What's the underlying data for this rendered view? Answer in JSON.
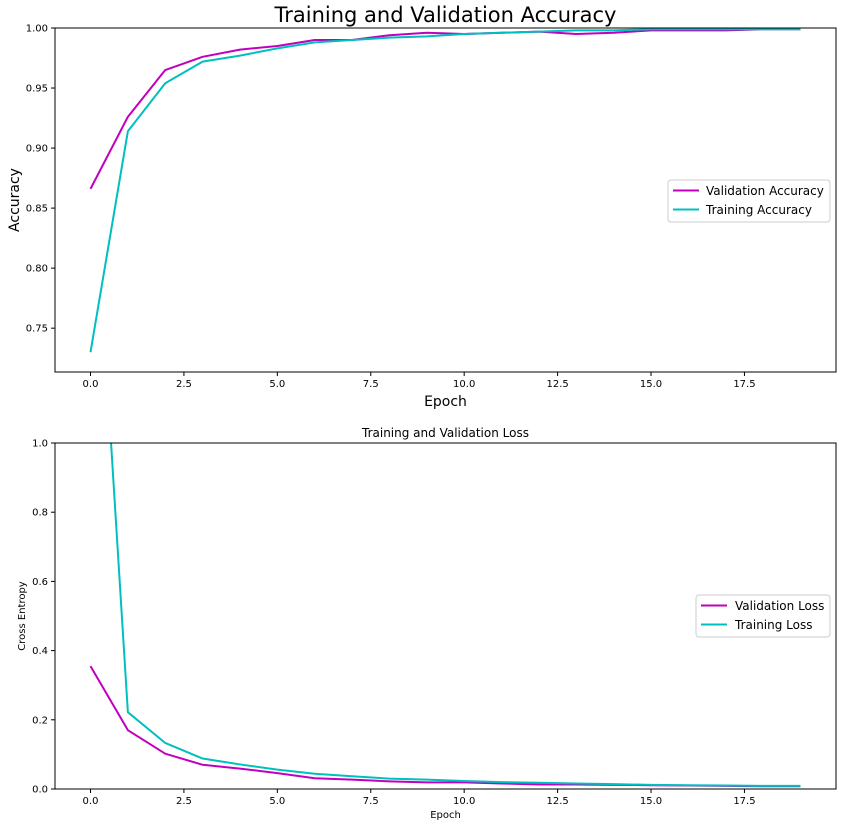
{
  "colors": {
    "validation": "#bf00bf",
    "training": "#00bfbf",
    "axis": "#000000",
    "legend_border": "#cccccc"
  },
  "chart_data": [
    {
      "type": "line",
      "title": "Training and Validation Accuracy",
      "xlabel": "Epoch",
      "ylabel": "Accuracy",
      "xlim": [
        -0.95,
        19.95
      ],
      "ylim": [
        0.7135,
        1.0
      ],
      "xticks": [
        "0.0",
        "2.5",
        "5.0",
        "7.5",
        "10.0",
        "12.5",
        "15.0",
        "17.5"
      ],
      "yticks": [
        "0.75",
        "0.80",
        "0.85",
        "0.90",
        "0.95",
        "1.00"
      ],
      "grid": false,
      "legend_position": "center-right",
      "x": [
        0,
        1,
        2,
        3,
        4,
        5,
        6,
        7,
        8,
        9,
        10,
        11,
        12,
        13,
        14,
        15,
        16,
        17,
        18,
        19
      ],
      "series": [
        {
          "name": "Validation Accuracy",
          "color_key": "validation",
          "values": [
            0.866,
            0.926,
            0.965,
            0.976,
            0.982,
            0.985,
            0.99,
            0.99,
            0.994,
            0.996,
            0.995,
            0.996,
            0.997,
            0.995,
            0.996,
            0.998,
            0.998,
            0.998,
            0.999,
            0.999
          ]
        },
        {
          "name": "Training Accuracy",
          "color_key": "training",
          "values": [
            0.73,
            0.914,
            0.954,
            0.972,
            0.977,
            0.983,
            0.988,
            0.99,
            0.992,
            0.993,
            0.995,
            0.996,
            0.997,
            0.998,
            0.998,
            0.999,
            0.999,
            0.999,
            0.999,
            0.999
          ]
        }
      ]
    },
    {
      "type": "line",
      "title": "Training and Validation Loss",
      "xlabel": "Epoch",
      "ylabel": "Cross Entropy",
      "xlim": [
        -0.95,
        19.95
      ],
      "ylim": [
        0.0,
        1.0
      ],
      "xticks": [
        "0.0",
        "2.5",
        "5.0",
        "7.5",
        "10.0",
        "12.5",
        "15.0",
        "17.5"
      ],
      "yticks": [
        "0.0",
        "0.2",
        "0.4",
        "0.6",
        "0.8",
        "1.0"
      ],
      "grid": false,
      "legend_position": "center-right",
      "x": [
        0,
        1,
        2,
        3,
        4,
        5,
        6,
        7,
        8,
        9,
        10,
        11,
        12,
        13,
        14,
        15,
        16,
        17,
        18,
        19
      ],
      "series": [
        {
          "name": "Validation Loss",
          "color_key": "validation",
          "values": [
            0.355,
            0.17,
            0.102,
            0.07,
            0.059,
            0.046,
            0.031,
            0.027,
            0.022,
            0.019,
            0.019,
            0.016,
            0.013,
            0.013,
            0.012,
            0.011,
            0.01,
            0.009,
            0.008,
            0.008
          ]
        },
        {
          "name": "Training Loss",
          "color_key": "training",
          "values": [
            1.95,
            0.222,
            0.133,
            0.088,
            0.071,
            0.056,
            0.044,
            0.037,
            0.03,
            0.027,
            0.023,
            0.02,
            0.018,
            0.016,
            0.014,
            0.012,
            0.011,
            0.01,
            0.009,
            0.009
          ]
        }
      ]
    }
  ]
}
